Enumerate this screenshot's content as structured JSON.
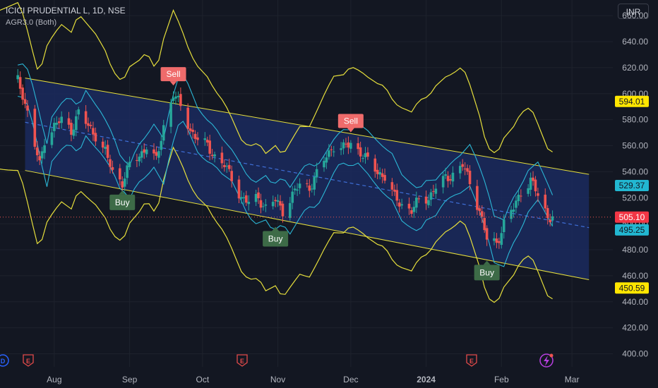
{
  "header": {
    "title": "ICICI PRUDENTIAL L, 1D, NSE",
    "indicator": "AGR3.0 (Both)",
    "currency": "INR"
  },
  "colors": {
    "background": "#131722",
    "up": "#26a69a",
    "down": "#ef5350",
    "envelope": "#e6df3c",
    "bollinger": "#2bb7d6",
    "channel_fill": "#1b2a5e",
    "channel_line": "#e6df3c",
    "midline": "#3f6fd8",
    "sell": "#ef6b6b",
    "buy": "#3d6b47",
    "axis_text": "#b2b5be"
  },
  "chart_data": {
    "type": "candlestick",
    "y_range": [
      390,
      672
    ],
    "y_ticks": [
      400,
      420,
      440,
      460,
      480,
      500,
      520,
      540,
      560,
      580,
      600,
      620,
      640,
      660
    ],
    "x_ticks": [
      {
        "label": "Aug",
        "date": "2023-08-01"
      },
      {
        "label": "Sep",
        "date": "2023-09-01"
      },
      {
        "label": "Oct",
        "date": "2023-10-01"
      },
      {
        "label": "Nov",
        "date": "2023-11-01"
      },
      {
        "label": "Dec",
        "date": "2023-12-01"
      },
      {
        "label": "2024",
        "date": "2024-01-01"
      },
      {
        "label": "Feb",
        "date": "2024-02-01"
      },
      {
        "label": "Mar",
        "date": "2024-03-01"
      }
    ],
    "close_approx": [
      [
        "2023-07-17",
        610
      ],
      [
        "2023-07-19",
        600
      ],
      [
        "2023-07-21",
        585
      ],
      [
        "2023-07-24",
        560
      ],
      [
        "2023-07-26",
        545
      ],
      [
        "2023-07-28",
        565
      ],
      [
        "2023-08-01",
        575
      ],
      [
        "2023-08-04",
        580
      ],
      [
        "2023-08-08",
        572
      ],
      [
        "2023-08-11",
        585
      ],
      [
        "2023-08-15",
        575
      ],
      [
        "2023-08-18",
        568
      ],
      [
        "2023-08-22",
        555
      ],
      [
        "2023-08-25",
        540
      ],
      [
        "2023-08-29",
        532
      ],
      [
        "2023-09-01",
        545
      ],
      [
        "2023-09-05",
        552
      ],
      [
        "2023-09-08",
        560
      ],
      [
        "2023-09-12",
        548
      ],
      [
        "2023-09-15",
        575
      ],
      [
        "2023-09-19",
        600
      ],
      [
        "2023-09-22",
        590
      ],
      [
        "2023-09-26",
        572
      ],
      [
        "2023-09-29",
        565
      ],
      [
        "2023-10-03",
        560
      ],
      [
        "2023-10-06",
        552
      ],
      [
        "2023-10-10",
        545
      ],
      [
        "2023-10-13",
        535
      ],
      [
        "2023-10-17",
        520
      ],
      [
        "2023-10-20",
        516
      ],
      [
        "2023-10-24",
        520
      ],
      [
        "2023-10-27",
        512
      ],
      [
        "2023-10-31",
        518
      ],
      [
        "2023-11-03",
        510
      ],
      [
        "2023-11-07",
        522
      ],
      [
        "2023-11-10",
        530
      ],
      [
        "2023-11-14",
        528
      ],
      [
        "2023-11-17",
        538
      ],
      [
        "2023-11-21",
        552
      ],
      [
        "2023-11-24",
        560
      ],
      [
        "2023-11-28",
        558
      ],
      [
        "2023-12-01",
        562
      ],
      [
        "2023-12-05",
        555
      ],
      [
        "2023-12-08",
        548
      ],
      [
        "2023-12-12",
        540
      ],
      [
        "2023-12-15",
        536
      ],
      [
        "2023-12-19",
        520
      ],
      [
        "2023-12-22",
        515
      ],
      [
        "2023-12-26",
        510
      ],
      [
        "2023-12-29",
        518
      ],
      [
        "2024-01-02",
        520
      ],
      [
        "2024-01-05",
        528
      ],
      [
        "2024-01-09",
        535
      ],
      [
        "2024-01-12",
        538
      ],
      [
        "2024-01-16",
        545
      ],
      [
        "2024-01-19",
        532
      ],
      [
        "2024-01-23",
        510
      ],
      [
        "2024-01-26",
        488
      ],
      [
        "2024-01-30",
        485
      ],
      [
        "2024-02-02",
        500
      ],
      [
        "2024-02-06",
        512
      ],
      [
        "2024-02-09",
        525
      ],
      [
        "2024-02-13",
        533
      ],
      [
        "2024-02-16",
        522
      ],
      [
        "2024-02-20",
        506
      ],
      [
        "2024-02-22",
        505
      ]
    ],
    "channel": {
      "start": "2023-07-20",
      "end": "2024-03-08",
      "upper": [
        612,
        538
      ],
      "lower": [
        541,
        457
      ],
      "middle": [
        578,
        497
      ]
    },
    "signals": [
      {
        "type": "Sell",
        "label": "Sell",
        "date": "2023-09-19",
        "price": 602
      },
      {
        "type": "Sell",
        "label": "Sell",
        "date": "2023-12-01",
        "price": 566
      },
      {
        "type": "Buy",
        "label": "Buy",
        "date": "2023-08-29",
        "price": 530
      },
      {
        "type": "Buy",
        "label": "Buy",
        "date": "2023-10-31",
        "price": 502
      },
      {
        "type": "Buy",
        "label": "Buy",
        "date": "2024-01-26",
        "price": 476
      }
    ],
    "price_labels": [
      {
        "value": "594.01",
        "kind": "envelope_upper"
      },
      {
        "value": "529.37",
        "kind": "band_upper"
      },
      {
        "value": "505.10",
        "kind": "last_price"
      },
      {
        "value": "495.25",
        "kind": "band_lower"
      },
      {
        "value": "450.59",
        "kind": "envelope_lower"
      }
    ]
  }
}
